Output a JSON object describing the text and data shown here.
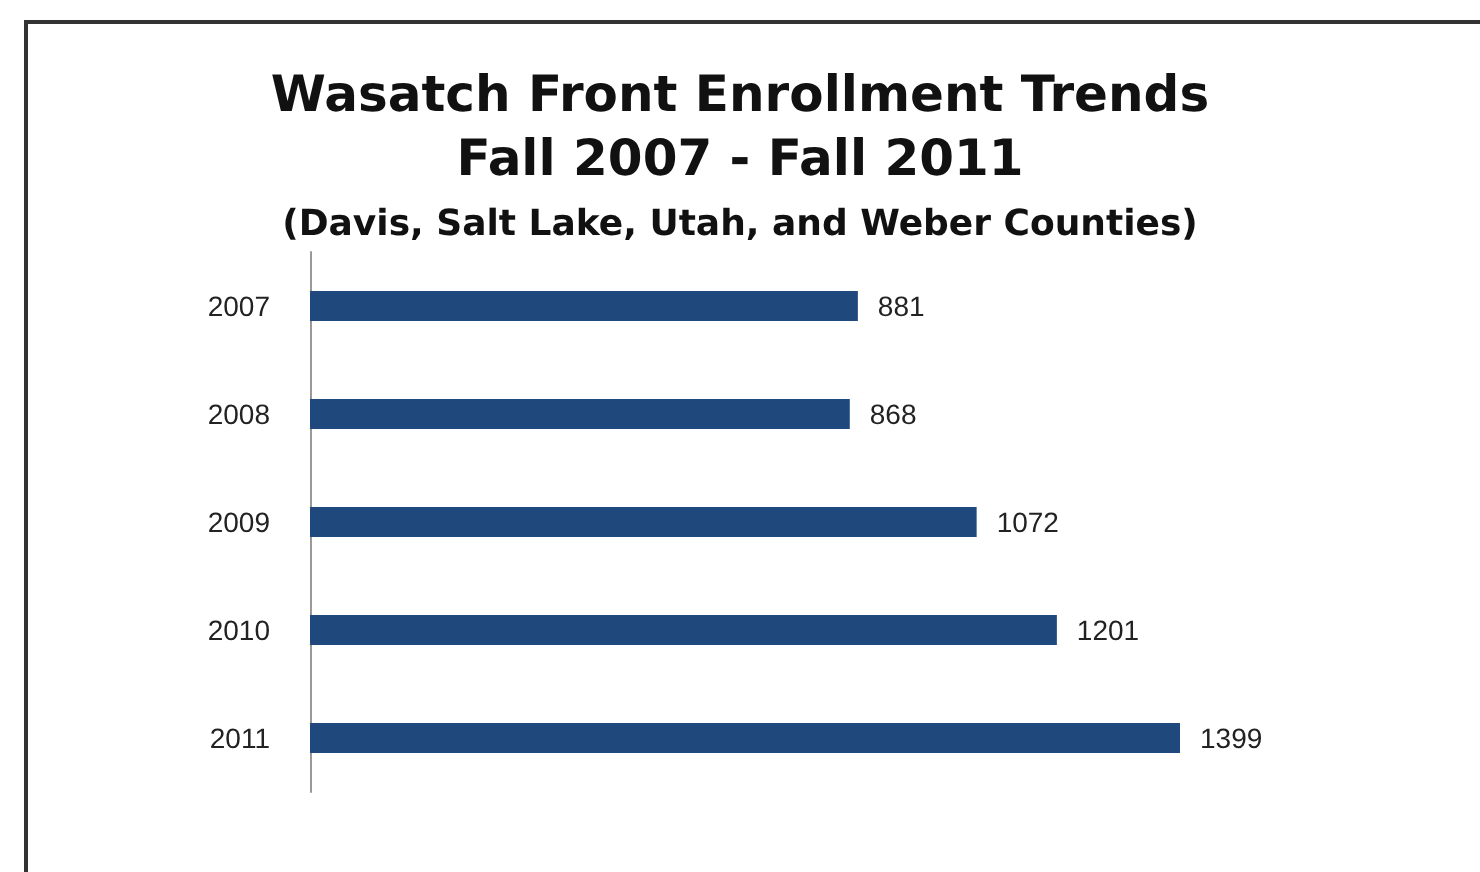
{
  "chart_data": {
    "type": "bar",
    "orientation": "horizontal",
    "title": "Wasatch Front Enrollment Trends\nFall 2007 - Fall 2011",
    "subtitle": "(Davis, Salt Lake, Utah, and Weber Counties)",
    "categories": [
      "2007",
      "2008",
      "2009",
      "2010",
      "2011"
    ],
    "values": [
      881,
      868,
      1072,
      1201,
      1399
    ],
    "color": "#1f497d",
    "data_labels": true,
    "tick_labels": "y",
    "grid": false
  }
}
